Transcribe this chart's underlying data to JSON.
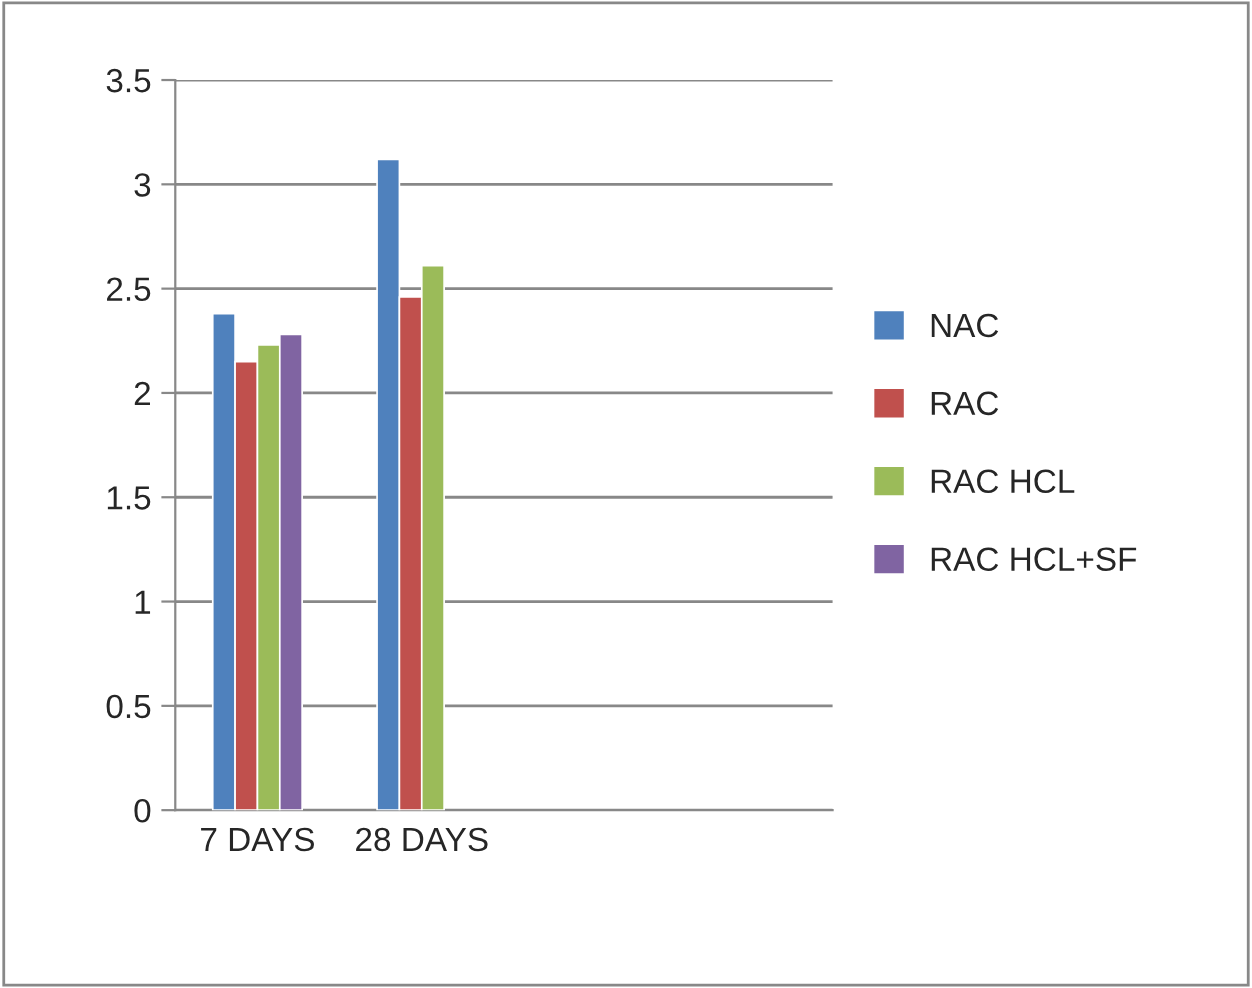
{
  "chart_data": {
    "type": "bar",
    "categories": [
      "7 DAYS",
      "28 DAYS",
      null,
      null
    ],
    "series": [
      {
        "name": "NAC",
        "color": "#4f81bd",
        "values": [
          2.38,
          3.12,
          null,
          null
        ]
      },
      {
        "name": "RAC",
        "color": "#c0504d",
        "values": [
          2.15,
          2.46,
          null,
          null
        ]
      },
      {
        "name": "RAC HCL",
        "color": "#9bbb59",
        "values": [
          2.23,
          2.61,
          null,
          null
        ]
      },
      {
        "name": "RAC HCL+SF",
        "color": "#8064a2",
        "values": [
          2.28,
          null,
          null,
          null
        ]
      }
    ],
    "ylim": [
      0,
      3.5
    ],
    "yticks": [
      0,
      0.5,
      1,
      1.5,
      2,
      2.5,
      3,
      3.5
    ],
    "grid": "y",
    "legend": "right"
  }
}
